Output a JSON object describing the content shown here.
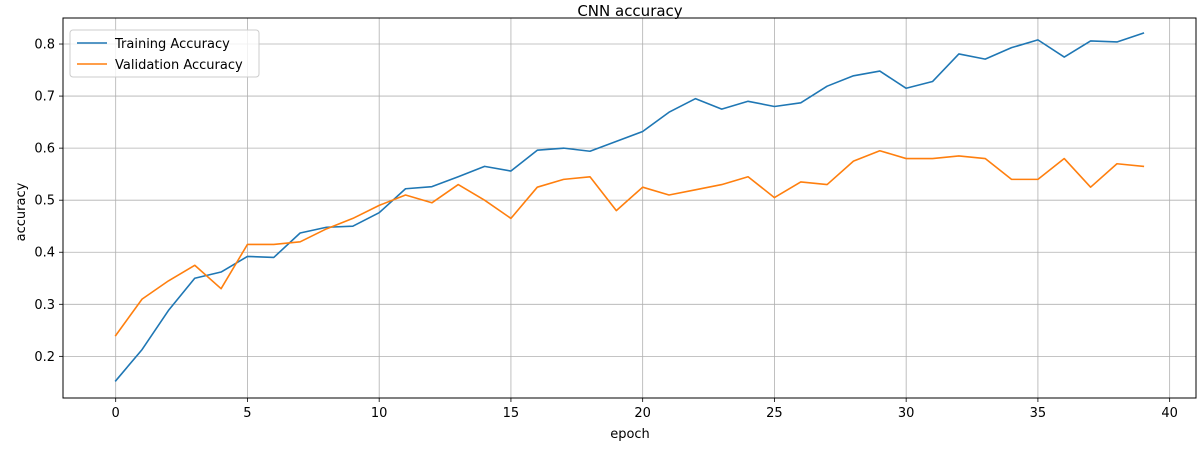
{
  "chart_data": {
    "type": "line",
    "title": "CNN accuracy",
    "xlabel": "epoch",
    "ylabel": "accuracy",
    "xlim": [
      -2,
      41
    ],
    "ylim": [
      0.12,
      0.85
    ],
    "xticks": [
      0,
      5,
      10,
      15,
      20,
      25,
      30,
      35,
      40
    ],
    "yticks": [
      0.2,
      0.3,
      0.4,
      0.5,
      0.6,
      0.7,
      0.8
    ],
    "grid": true,
    "legend_position": "upper-left",
    "x": [
      0,
      1,
      2,
      3,
      4,
      5,
      6,
      7,
      8,
      9,
      10,
      11,
      12,
      13,
      14,
      15,
      16,
      17,
      18,
      19,
      20,
      21,
      22,
      23,
      24,
      25,
      26,
      27,
      28,
      29,
      30,
      31,
      32,
      33,
      34,
      35,
      36,
      37,
      38,
      39
    ],
    "series": [
      {
        "name": "Training Accuracy",
        "color": "#1f77b4",
        "values": [
          0.153,
          0.213,
          0.288,
          0.35,
          0.362,
          0.392,
          0.39,
          0.437,
          0.448,
          0.45,
          0.476,
          0.522,
          0.526,
          0.545,
          0.565,
          0.556,
          0.596,
          0.6,
          0.594,
          0.613,
          0.632,
          0.669,
          0.695,
          0.675,
          0.69,
          0.68,
          0.687,
          0.719,
          0.739,
          0.748,
          0.715,
          0.728,
          0.781,
          0.771,
          0.793,
          0.808,
          0.775,
          0.806,
          0.804,
          0.821
        ]
      },
      {
        "name": "Validation Accuracy",
        "color": "#ff7f0e",
        "values": [
          0.24,
          0.31,
          0.345,
          0.375,
          0.33,
          0.415,
          0.415,
          0.42,
          0.445,
          0.465,
          0.49,
          0.51,
          0.495,
          0.53,
          0.5,
          0.465,
          0.525,
          0.54,
          0.545,
          0.48,
          0.525,
          0.51,
          0.52,
          0.53,
          0.545,
          0.505,
          0.535,
          0.53,
          0.575,
          0.595,
          0.58,
          0.58,
          0.585,
          0.58,
          0.54,
          0.54,
          0.58,
          0.525,
          0.57,
          0.565
        ]
      }
    ]
  }
}
